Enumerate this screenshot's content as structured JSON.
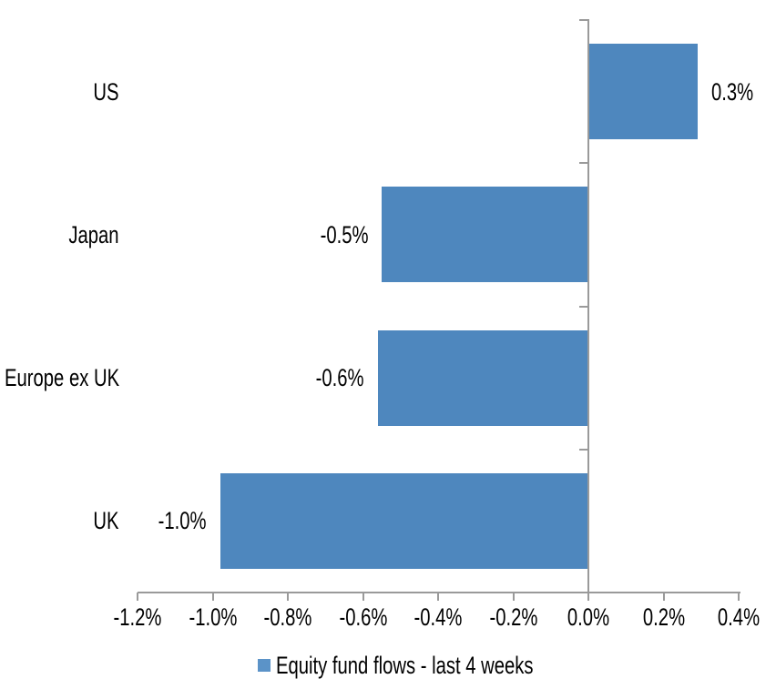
{
  "chart_data": {
    "type": "bar",
    "orientation": "horizontal",
    "categories": [
      "US",
      "Japan",
      "Europe ex UK",
      "UK"
    ],
    "values": [
      0.29,
      -0.55,
      -0.56,
      -0.98
    ],
    "data_labels": [
      "0.3%",
      "-0.5%",
      "-0.6%",
      "-1.0%"
    ],
    "series_name": "Equity fund flows - last 4 weeks",
    "xlabel": "",
    "ylabel": "",
    "xlim": [
      -1.2,
      0.4
    ],
    "x_tick_values": [
      -1.2,
      -1.0,
      -0.8,
      -0.6,
      -0.4,
      -0.2,
      0.0,
      0.2,
      0.4
    ],
    "x_tick_labels": [
      "-1.2%",
      "-1.0%",
      "-0.8%",
      "-0.6%",
      "-0.4%",
      "-0.2%",
      "0.0%",
      "0.2%",
      "0.4%"
    ],
    "grid": false,
    "legend_position": "bottom",
    "colors": {
      "bar": "#4E87BE",
      "legend_marker": "#5B93C8",
      "axis": "#9A9A9A",
      "text": "#000000",
      "background": "#FFFFFF"
    }
  }
}
